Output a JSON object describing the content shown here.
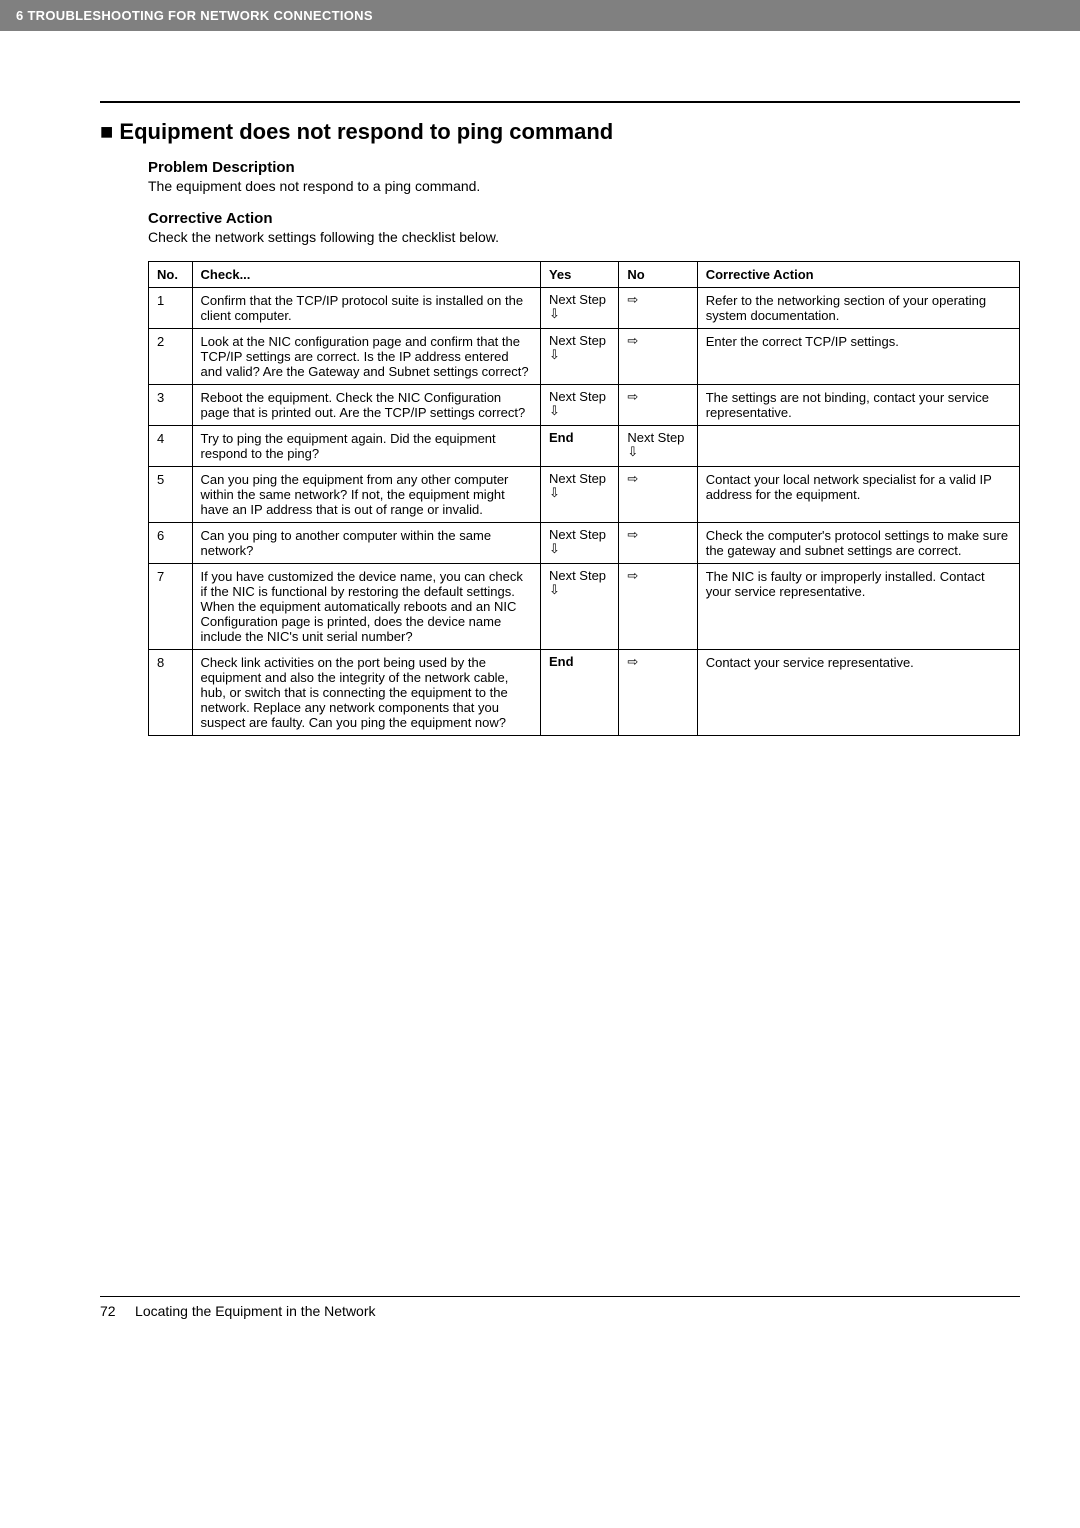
{
  "header": {
    "title": "6 TROUBLESHOOTING FOR NETWORK CONNECTIONS"
  },
  "section": {
    "marker": "■",
    "title": "Equipment does not respond to ping command"
  },
  "problem": {
    "heading": "Problem Description",
    "text": "The equipment does not respond to a ping command."
  },
  "corrective": {
    "heading": "Corrective Action",
    "text": "Check the network settings following the checklist below."
  },
  "table": {
    "headers": {
      "no": "No.",
      "check": "Check...",
      "yes": "Yes",
      "no_col": "No",
      "action": "Corrective Action"
    },
    "next_step": "Next Step",
    "down_arrow": "⇩",
    "right_arrow": "⇨",
    "end": "End",
    "rows": [
      {
        "n": "1",
        "check": "Confirm that the TCP/IP protocol suite is installed on the client computer.",
        "yes_type": "next",
        "no_type": "right",
        "action": "Refer to the networking section of your operating system documentation."
      },
      {
        "n": "2",
        "check": "Look at the NIC configuration page and confirm that the TCP/IP settings are correct. Is the IP address entered and valid? Are the Gateway and Subnet settings correct?",
        "yes_type": "next",
        "no_type": "right",
        "action": "Enter the correct TCP/IP settings."
      },
      {
        "n": "3",
        "check": "Reboot the equipment. Check the NIC Configuration page that is printed out. Are the TCP/IP settings correct?",
        "yes_type": "next",
        "no_type": "right",
        "action": "The settings are not binding, contact your service representative."
      },
      {
        "n": "4",
        "check": "Try to ping the equipment again. Did the equipment respond to the ping?",
        "yes_type": "end",
        "no_type": "next",
        "action": ""
      },
      {
        "n": "5",
        "check": "Can you ping the equipment from any other computer within the same network? If not, the equipment might have an IP address that is out of range or invalid.",
        "yes_type": "next",
        "no_type": "right",
        "action": "Contact your local network specialist for a valid IP address for the equipment."
      },
      {
        "n": "6",
        "check": "Can you ping to another computer within the same network?",
        "yes_type": "next",
        "no_type": "right",
        "action": "Check the computer's protocol settings to make sure the gateway and subnet settings are correct."
      },
      {
        "n": "7",
        "check": "If you have customized the device name, you can check if the NIC is functional by restoring the default settings. When the equipment automatically reboots and an NIC Configuration page is printed, does the device name include the NIC's unit serial number?",
        "yes_type": "next",
        "no_type": "right",
        "action": "The NIC is faulty or improperly installed. Contact your service representative."
      },
      {
        "n": "8",
        "check": "Check link activities on the port being used by the equipment and also the integrity of the network cable, hub, or switch that is connecting the equipment to the network. Replace any network components that you suspect are faulty. Can you ping the equipment now?",
        "yes_type": "end",
        "no_type": "right",
        "action": "Contact your service representative."
      }
    ]
  },
  "footer": {
    "page": "72",
    "text": "Locating the Equipment in the Network"
  }
}
